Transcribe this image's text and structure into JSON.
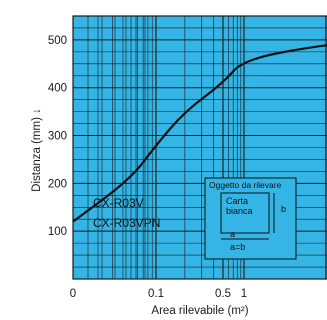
{
  "chart_data": {
    "type": "line",
    "xlabel": "Area rilevabile (m²)",
    "ylabel": "Distanza (mm) ↓",
    "x_ticks": [
      "0",
      "0.1",
      "0.5",
      "1"
    ],
    "y_ticks": [
      100,
      200,
      300,
      400,
      500
    ],
    "ylim": [
      0,
      550
    ],
    "x_scale": "log",
    "grid": true,
    "series": [
      {
        "name": "CX-R03V\nCX-R03VPN",
        "x": [
          0,
          0.05,
          0.1,
          0.2,
          0.5,
          1,
          2,
          3,
          5,
          10
        ],
        "y": [
          120,
          210,
          280,
          350,
          410,
          460,
          490,
          498,
          500,
          500
        ]
      }
    ],
    "series_label_lines": [
      "CX-R03V",
      "CX-R03VPN"
    ],
    "inset": {
      "title": "Oggetto da rilevare",
      "paper_label_lines": [
        "Carta",
        "bianca"
      ],
      "side_label": "b",
      "bottom_label": "a",
      "equation": "a=b"
    },
    "colors": {
      "plot_background": "#34B5E6",
      "grid": "#1a1a1a",
      "curve": "#111111",
      "inset_background": "#34B5E6"
    }
  }
}
